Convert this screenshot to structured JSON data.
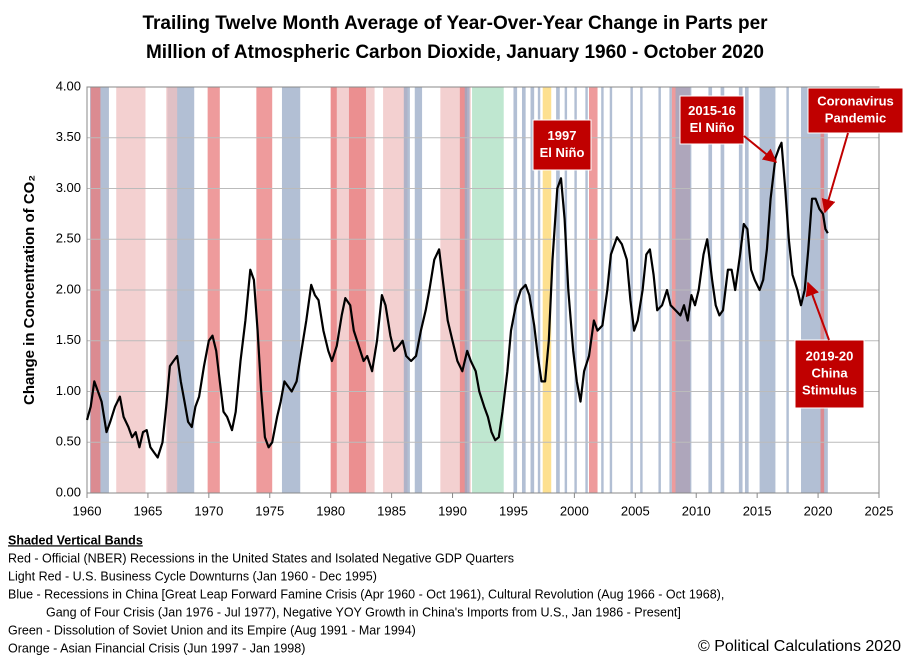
{
  "chart_data": {
    "type": "line",
    "title_lines": [
      "Trailing Twelve Month Average of Year-Over-Year Change in Parts per",
      "Million of Atmospheric Carbon Dioxide, January 1960 - October 2020"
    ],
    "y_label": "Change in Concentration of CO₂",
    "xlim": [
      1960,
      2025
    ],
    "xticks": [
      1960,
      1965,
      1970,
      1975,
      1980,
      1985,
      1990,
      1995,
      2000,
      2005,
      2010,
      2015,
      2020,
      2025
    ],
    "ylim": [
      0,
      4
    ],
    "yticks": [
      {
        "value": 0,
        "label": "0.00"
      },
      {
        "value": 0.5,
        "label": "0.50"
      },
      {
        "value": 1,
        "label": "1.00"
      },
      {
        "value": 1.5,
        "label": "1.50"
      },
      {
        "value": 2,
        "label": "2.00"
      },
      {
        "value": 2.5,
        "label": "2.50"
      },
      {
        "value": 3,
        "label": "3.00"
      },
      {
        "value": 3.5,
        "label": "3.50"
      },
      {
        "value": 4,
        "label": "4.00"
      }
    ],
    "grid": true,
    "line_color": "#000000",
    "x": [
      1960.0,
      1960.3,
      1960.6,
      1960.9,
      1961.2,
      1961.6,
      1961.9,
      1962.3,
      1962.7,
      1963.0,
      1963.4,
      1963.7,
      1964.0,
      1964.3,
      1964.6,
      1964.9,
      1965.2,
      1965.5,
      1965.8,
      1966.2,
      1966.5,
      1966.8,
      1967.1,
      1967.4,
      1967.7,
      1968.0,
      1968.3,
      1968.6,
      1968.9,
      1969.2,
      1969.6,
      1970.0,
      1970.3,
      1970.6,
      1970.9,
      1971.2,
      1971.5,
      1971.9,
      1972.2,
      1972.6,
      1973.0,
      1973.4,
      1973.7,
      1974.0,
      1974.3,
      1974.6,
      1974.9,
      1975.2,
      1975.6,
      1975.9,
      1976.2,
      1976.5,
      1976.8,
      1977.2,
      1977.6,
      1978.0,
      1978.4,
      1978.7,
      1979.0,
      1979.4,
      1979.8,
      1980.1,
      1980.5,
      1980.9,
      1981.2,
      1981.6,
      1981.9,
      1982.3,
      1982.7,
      1983.0,
      1983.4,
      1983.8,
      1984.2,
      1984.5,
      1984.9,
      1985.2,
      1985.6,
      1985.9,
      1986.2,
      1986.6,
      1987.0,
      1987.4,
      1987.8,
      1988.1,
      1988.5,
      1988.9,
      1989.2,
      1989.6,
      1990.0,
      1990.4,
      1990.8,
      1991.2,
      1991.5,
      1991.9,
      1992.2,
      1992.6,
      1992.9,
      1993.2,
      1993.5,
      1993.8,
      1994.1,
      1994.5,
      1994.8,
      1995.2,
      1995.6,
      1996.0,
      1996.3,
      1996.7,
      1997.0,
      1997.3,
      1997.6,
      1997.9,
      1998.2,
      1998.6,
      1998.9,
      1999.2,
      1999.5,
      1999.9,
      2000.2,
      2000.5,
      2000.8,
      2001.2,
      2001.6,
      2001.9,
      2002.3,
      2002.7,
      2003.0,
      2003.5,
      2003.9,
      2004.3,
      2004.6,
      2004.9,
      2005.2,
      2005.6,
      2005.9,
      2006.2,
      2006.5,
      2006.8,
      2007.2,
      2007.6,
      2007.9,
      2008.3,
      2008.7,
      2009.0,
      2009.3,
      2009.6,
      2009.9,
      2010.2,
      2010.6,
      2010.9,
      2011.3,
      2011.6,
      2011.9,
      2012.2,
      2012.6,
      2012.9,
      2013.2,
      2013.6,
      2013.9,
      2014.2,
      2014.5,
      2014.8,
      2015.2,
      2015.5,
      2015.8,
      2016.1,
      2016.5,
      2016.8,
      2017.0,
      2017.3,
      2017.6,
      2017.9,
      2018.3,
      2018.6,
      2018.9,
      2019.2,
      2019.5,
      2019.8,
      2020.1,
      2020.4,
      2020.6,
      2020.8
    ],
    "values": [
      0.72,
      0.85,
      1.1,
      1.0,
      0.9,
      0.6,
      0.7,
      0.85,
      0.95,
      0.75,
      0.65,
      0.55,
      0.6,
      0.45,
      0.6,
      0.62,
      0.45,
      0.4,
      0.35,
      0.5,
      0.85,
      1.25,
      1.3,
      1.35,
      1.1,
      0.9,
      0.7,
      0.65,
      0.85,
      0.95,
      1.25,
      1.5,
      1.55,
      1.4,
      1.1,
      0.8,
      0.75,
      0.62,
      0.8,
      1.3,
      1.7,
      2.2,
      2.1,
      1.6,
      1.0,
      0.55,
      0.45,
      0.5,
      0.75,
      0.9,
      1.1,
      1.05,
      1.0,
      1.1,
      1.4,
      1.7,
      2.05,
      1.95,
      1.9,
      1.6,
      1.4,
      1.3,
      1.45,
      1.75,
      1.92,
      1.85,
      1.6,
      1.45,
      1.3,
      1.35,
      1.2,
      1.5,
      1.95,
      1.85,
      1.55,
      1.4,
      1.45,
      1.5,
      1.35,
      1.3,
      1.35,
      1.6,
      1.8,
      2.0,
      2.3,
      2.4,
      2.1,
      1.7,
      1.5,
      1.3,
      1.2,
      1.4,
      1.3,
      1.2,
      1.0,
      0.85,
      0.75,
      0.6,
      0.52,
      0.55,
      0.8,
      1.2,
      1.6,
      1.85,
      2.0,
      2.05,
      1.95,
      1.65,
      1.35,
      1.1,
      1.1,
      1.5,
      2.3,
      3.0,
      3.1,
      2.7,
      2.0,
      1.4,
      1.1,
      0.9,
      1.2,
      1.35,
      1.7,
      1.6,
      1.65,
      2.0,
      2.35,
      2.52,
      2.45,
      2.3,
      1.9,
      1.6,
      1.7,
      2.0,
      2.35,
      2.4,
      2.15,
      1.8,
      1.85,
      2.0,
      1.85,
      1.8,
      1.75,
      1.85,
      1.7,
      1.95,
      1.85,
      2.0,
      2.35,
      2.5,
      2.1,
      1.85,
      1.75,
      1.8,
      2.2,
      2.2,
      2.0,
      2.35,
      2.65,
      2.6,
      2.2,
      2.1,
      2.0,
      2.1,
      2.4,
      2.9,
      3.3,
      3.4,
      3.45,
      3.0,
      2.5,
      2.15,
      2.0,
      1.85,
      2.0,
      2.4,
      2.9,
      2.9,
      2.8,
      2.75,
      2.6,
      2.56
    ],
    "bands": [
      {
        "start": 1960.25,
        "end": 1961.8,
        "color": "#98a9c6"
      },
      {
        "start": 1960.3,
        "end": 1961.1,
        "color": "#e8797b"
      },
      {
        "start": 1962.4,
        "end": 1964.8,
        "color": "#efc0c0"
      },
      {
        "start": 1966.6,
        "end": 1968.8,
        "color": "#98a9c6"
      },
      {
        "start": 1966.5,
        "end": 1967.4,
        "color": "#efc0c0"
      },
      {
        "start": 1969.9,
        "end": 1970.9,
        "color": "#e8797b"
      },
      {
        "start": 1973.9,
        "end": 1975.2,
        "color": "#e8797b"
      },
      {
        "start": 1976.0,
        "end": 1977.5,
        "color": "#98a9c6"
      },
      {
        "start": 1980.0,
        "end": 1983.6,
        "color": "#efc0c0"
      },
      {
        "start": 1980.0,
        "end": 1980.5,
        "color": "#e8797b"
      },
      {
        "start": 1981.5,
        "end": 1982.9,
        "color": "#e8797b"
      },
      {
        "start": 1984.3,
        "end": 1986.3,
        "color": "#efc0c0"
      },
      {
        "start": 1986.0,
        "end": 1986.5,
        "color": "#98a9c6"
      },
      {
        "start": 1986.9,
        "end": 1987.5,
        "color": "#98a9c6"
      },
      {
        "start": 1989.0,
        "end": 1991.5,
        "color": "#efc0c0"
      },
      {
        "start": 1990.6,
        "end": 1991.2,
        "color": "#e8797b"
      },
      {
        "start": 1991.0,
        "end": 1991.4,
        "color": "#98a9c6"
      },
      {
        "start": 1991.6,
        "end": 1994.2,
        "color": "#a9dfc0"
      },
      {
        "start": 1995.0,
        "end": 1995.3,
        "color": "#98a9c6"
      },
      {
        "start": 1995.7,
        "end": 1996.0,
        "color": "#98a9c6"
      },
      {
        "start": 1996.4,
        "end": 1996.7,
        "color": "#98a9c6"
      },
      {
        "start": 1997.0,
        "end": 1997.2,
        "color": "#98a9c6"
      },
      {
        "start": 1997.4,
        "end": 1998.1,
        "color": "#fcd56b"
      },
      {
        "start": 1998.5,
        "end": 1998.8,
        "color": "#98a9c6"
      },
      {
        "start": 1999.2,
        "end": 1999.4,
        "color": "#98a9c6"
      },
      {
        "start": 2000.0,
        "end": 2000.2,
        "color": "#98a9c6"
      },
      {
        "start": 2000.9,
        "end": 2001.1,
        "color": "#98a9c6"
      },
      {
        "start": 2001.2,
        "end": 2001.9,
        "color": "#e8797b"
      },
      {
        "start": 2002.2,
        "end": 2002.4,
        "color": "#98a9c6"
      },
      {
        "start": 2002.9,
        "end": 2003.1,
        "color": "#98a9c6"
      },
      {
        "start": 2004.6,
        "end": 2004.8,
        "color": "#98a9c6"
      },
      {
        "start": 2005.4,
        "end": 2005.6,
        "color": "#98a9c6"
      },
      {
        "start": 2006.9,
        "end": 2007.1,
        "color": "#98a9c6"
      },
      {
        "start": 2007.8,
        "end": 2008.0,
        "color": "#98a9c6"
      },
      {
        "start": 2008.0,
        "end": 2009.5,
        "color": "#e8797b"
      },
      {
        "start": 2008.3,
        "end": 2009.6,
        "color": "#98a9c6"
      },
      {
        "start": 2011.0,
        "end": 2011.3,
        "color": "#98a9c6"
      },
      {
        "start": 2012.0,
        "end": 2012.3,
        "color": "#98a9c6"
      },
      {
        "start": 2013.5,
        "end": 2013.8,
        "color": "#98a9c6"
      },
      {
        "start": 2014.0,
        "end": 2014.3,
        "color": "#98a9c6"
      },
      {
        "start": 2015.2,
        "end": 2016.5,
        "color": "#98a9c6"
      },
      {
        "start": 2017.4,
        "end": 2017.6,
        "color": "#98a9c6"
      },
      {
        "start": 2018.6,
        "end": 2020.8,
        "color": "#98a9c6"
      },
      {
        "start": 2020.2,
        "end": 2020.5,
        "color": "#e8797b"
      }
    ],
    "annotations": [
      {
        "lines": [
          "1997",
          "El Niño"
        ]
      },
      {
        "lines": [
          "2015-16",
          "El Niño"
        ]
      },
      {
        "lines": [
          "Coronavirus",
          "Pandemic"
        ]
      },
      {
        "lines": [
          "2019-20",
          "China",
          "Stimulus"
        ]
      }
    ],
    "notes": [
      "Shaded Vertical Bands",
      "Red - Official (NBER) Recessions in the United States and Isolated Negative GDP Quarters",
      "Light Red - U.S. Business Cycle Downturns (Jan 1960 - Dec 1995)",
      "Blue - Recessions in China [Great Leap Forward Famine Crisis (Apr 1960 - Oct 1961), Cultural Revolution (Aug 1966 - Oct 1968),",
      "Gang of Four Crisis (Jan 1976 -  Jul 1977),  Negative  YOY Growth in China's Imports from U.S., Jan 1986 - Present]",
      "Green - Dissolution of Soviet Union and its Empire (Aug 1991 - Mar 1994)",
      "Orange - Asian Financial Crisis (Jun 1997 - Jan 1998)"
    ],
    "credit": "© Political Calculations 2020"
  }
}
